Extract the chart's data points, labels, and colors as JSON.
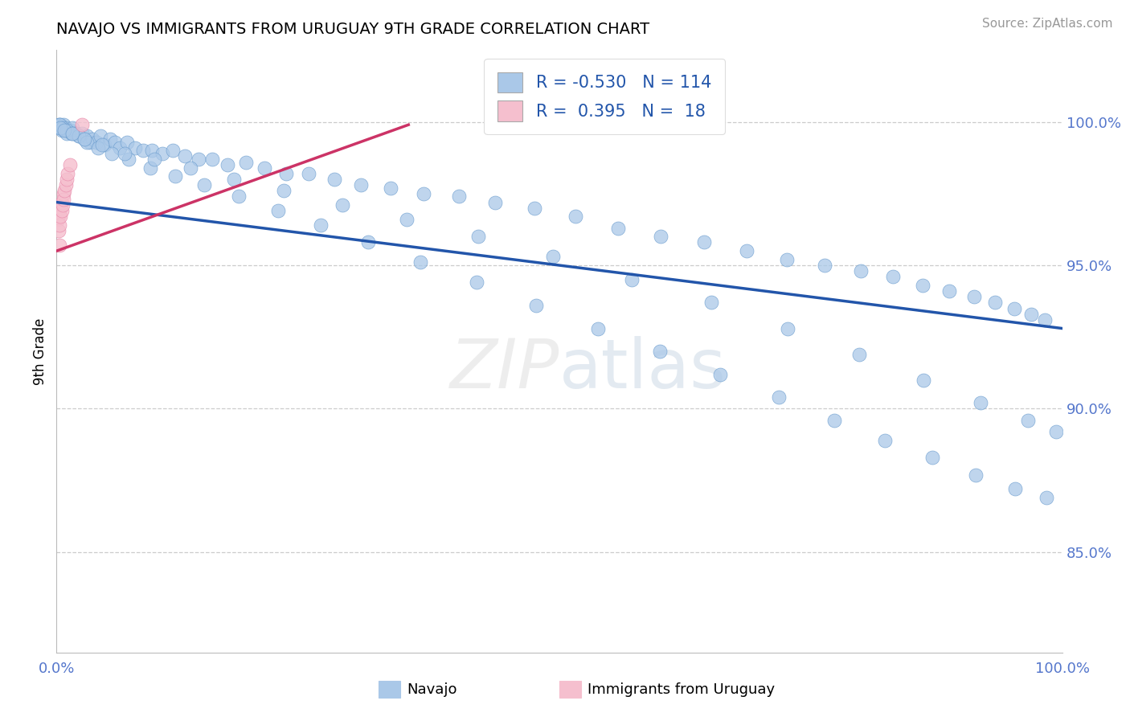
{
  "title": "NAVAJO VS IMMIGRANTS FROM URUGUAY 9TH GRADE CORRELATION CHART",
  "source": "Source: ZipAtlas.com",
  "ylabel": "9th Grade",
  "right_yticks": [
    0.85,
    0.9,
    0.95,
    1.0
  ],
  "right_yticklabels": [
    "85.0%",
    "90.0%",
    "95.0%",
    "100.0%"
  ],
  "legend_blue_r": "-0.530",
  "legend_blue_n": "114",
  "legend_pink_r": "0.395",
  "legend_pink_n": "18",
  "legend_label_blue": "Navajo",
  "legend_label_pink": "Immigrants from Uruguay",
  "blue_scatter_color": "#aac8e8",
  "pink_scatter_color": "#f5bfce",
  "blue_edge_color": "#6699cc",
  "pink_edge_color": "#e888aa",
  "blue_line_color": "#2255aa",
  "pink_line_color": "#cc3366",
  "background_color": "#ffffff",
  "grid_color": "#cccccc",
  "ylim_low": 0.815,
  "ylim_high": 1.025,
  "xlim_low": 0.0,
  "xlim_high": 1.0,
  "blue_line_x0": 0.0,
  "blue_line_y0": 0.972,
  "blue_line_x1": 1.0,
  "blue_line_y1": 0.928,
  "pink_line_x0": 0.0,
  "pink_line_y0": 0.955,
  "pink_line_x1": 0.35,
  "pink_line_y1": 0.999,
  "navajo_x": [
    0.002,
    0.003,
    0.004,
    0.005,
    0.006,
    0.007,
    0.008,
    0.009,
    0.01,
    0.012,
    0.014,
    0.016,
    0.018,
    0.02,
    0.022,
    0.025,
    0.028,
    0.03,
    0.033,
    0.036,
    0.04,
    0.044,
    0.048,
    0.053,
    0.058,
    0.063,
    0.07,
    0.078,
    0.086,
    0.095,
    0.105,
    0.116,
    0.128,
    0.141,
    0.155,
    0.17,
    0.188,
    0.207,
    0.228,
    0.251,
    0.276,
    0.303,
    0.332,
    0.365,
    0.4,
    0.436,
    0.475,
    0.516,
    0.558,
    0.601,
    0.644,
    0.686,
    0.726,
    0.764,
    0.8,
    0.832,
    0.861,
    0.888,
    0.912,
    0.933,
    0.952,
    0.969,
    0.983,
    0.003,
    0.006,
    0.01,
    0.015,
    0.022,
    0.03,
    0.041,
    0.055,
    0.072,
    0.093,
    0.118,
    0.147,
    0.181,
    0.22,
    0.263,
    0.31,
    0.362,
    0.418,
    0.477,
    0.538,
    0.6,
    0.66,
    0.718,
    0.773,
    0.824,
    0.871,
    0.914,
    0.953,
    0.984,
    0.004,
    0.008,
    0.016,
    0.028,
    0.045,
    0.068,
    0.097,
    0.133,
    0.176,
    0.226,
    0.284,
    0.348,
    0.419,
    0.494,
    0.572,
    0.651,
    0.727,
    0.798,
    0.862,
    0.919,
    0.966,
    0.994
  ],
  "navajo_y": [
    0.999,
    0.998,
    0.999,
    0.997,
    0.998,
    0.999,
    0.997,
    0.998,
    0.996,
    0.997,
    0.997,
    0.998,
    0.996,
    0.996,
    0.995,
    0.996,
    0.994,
    0.995,
    0.993,
    0.994,
    0.993,
    0.995,
    0.992,
    0.994,
    0.993,
    0.991,
    0.993,
    0.991,
    0.99,
    0.99,
    0.989,
    0.99,
    0.988,
    0.987,
    0.987,
    0.985,
    0.986,
    0.984,
    0.982,
    0.982,
    0.98,
    0.978,
    0.977,
    0.975,
    0.974,
    0.972,
    0.97,
    0.967,
    0.963,
    0.96,
    0.958,
    0.955,
    0.952,
    0.95,
    0.948,
    0.946,
    0.943,
    0.941,
    0.939,
    0.937,
    0.935,
    0.933,
    0.931,
    0.999,
    0.998,
    0.997,
    0.996,
    0.995,
    0.993,
    0.991,
    0.989,
    0.987,
    0.984,
    0.981,
    0.978,
    0.974,
    0.969,
    0.964,
    0.958,
    0.951,
    0.944,
    0.936,
    0.928,
    0.92,
    0.912,
    0.904,
    0.896,
    0.889,
    0.883,
    0.877,
    0.872,
    0.869,
    0.998,
    0.997,
    0.996,
    0.994,
    0.992,
    0.989,
    0.987,
    0.984,
    0.98,
    0.976,
    0.971,
    0.966,
    0.96,
    0.953,
    0.945,
    0.937,
    0.928,
    0.919,
    0.91,
    0.902,
    0.896,
    0.892
  ],
  "uruguay_x": [
    0.001,
    0.002,
    0.003,
    0.003,
    0.004,
    0.004,
    0.005,
    0.005,
    0.006,
    0.007,
    0.007,
    0.008,
    0.009,
    0.01,
    0.011,
    0.013,
    0.025,
    0.003
  ],
  "uruguay_y": [
    0.966,
    0.962,
    0.968,
    0.964,
    0.97,
    0.967,
    0.972,
    0.969,
    0.971,
    0.975,
    0.973,
    0.976,
    0.978,
    0.98,
    0.982,
    0.985,
    0.999,
    0.957
  ]
}
